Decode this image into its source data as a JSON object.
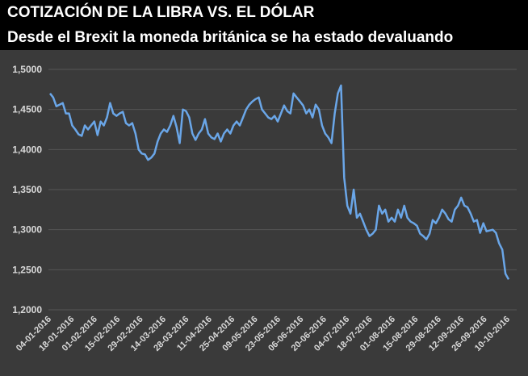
{
  "chart_data": {
    "type": "line",
    "title": "COTIZACIÓN DE LA LIBRA VS. EL DÓLAR",
    "subtitle": "Desde el Brexit la moneda británica se ha estado devaluando",
    "xlabel": "",
    "ylabel": "",
    "ylim": [
      1.2,
      1.5
    ],
    "yticks": [
      "1,2000",
      "1,2500",
      "1,3000",
      "1,3500",
      "1,4000",
      "1,4500",
      "1,5000"
    ],
    "xticks": [
      "04-01-2016",
      "18-01-2016",
      "01-02-2016",
      "15-02-2016",
      "29-02-2016",
      "14-03-2016",
      "28-03-2016",
      "11-04-2016",
      "25-04-2016",
      "09-05-2016",
      "23-05-2016",
      "06-06-2016",
      "20-06-2016",
      "04-07-2016",
      "18-07-2016",
      "01-08-2016",
      "15-08-2016",
      "29-08-2016",
      "12-09-2016",
      "26-09-2016",
      "10-10-2016"
    ],
    "grid": true,
    "line_color": "#6aa6e8",
    "series": [
      {
        "values": [
          1.47,
          1.465,
          1.454,
          1.456,
          1.458,
          1.445,
          1.445,
          1.43,
          1.425,
          1.419,
          1.417,
          1.43,
          1.425,
          1.43,
          1.435,
          1.418,
          1.435,
          1.43,
          1.44,
          1.458,
          1.445,
          1.442,
          1.445,
          1.447,
          1.433,
          1.43,
          1.433,
          1.42,
          1.4,
          1.395,
          1.394,
          1.387,
          1.39,
          1.395,
          1.41,
          1.42,
          1.425,
          1.422,
          1.43,
          1.442,
          1.428,
          1.408,
          1.45,
          1.448,
          1.44,
          1.42,
          1.412,
          1.42,
          1.425,
          1.438,
          1.42,
          1.415,
          1.413,
          1.42,
          1.41,
          1.42,
          1.425,
          1.42,
          1.43,
          1.435,
          1.43,
          1.44,
          1.45,
          1.456,
          1.46,
          1.463,
          1.465,
          1.45,
          1.445,
          1.44,
          1.438,
          1.442,
          1.435,
          1.445,
          1.455,
          1.448,
          1.445,
          1.47,
          1.465,
          1.46,
          1.455,
          1.445,
          1.45,
          1.44,
          1.456,
          1.45,
          1.43,
          1.42,
          1.415,
          1.408,
          1.445,
          1.47,
          1.48,
          1.365,
          1.33,
          1.32,
          1.35,
          1.315,
          1.32,
          1.31,
          1.3,
          1.292,
          1.295,
          1.3,
          1.33,
          1.32,
          1.325,
          1.31,
          1.315,
          1.31,
          1.325,
          1.315,
          1.33,
          1.315,
          1.31,
          1.308,
          1.305,
          1.295,
          1.292,
          1.288,
          1.295,
          1.312,
          1.308,
          1.315,
          1.325,
          1.32,
          1.313,
          1.31,
          1.325,
          1.33,
          1.34,
          1.33,
          1.328,
          1.32,
          1.31,
          1.312,
          1.296,
          1.308,
          1.298,
          1.299,
          1.3,
          1.296,
          1.283,
          1.275,
          1.245,
          1.238
        ]
      }
    ]
  }
}
